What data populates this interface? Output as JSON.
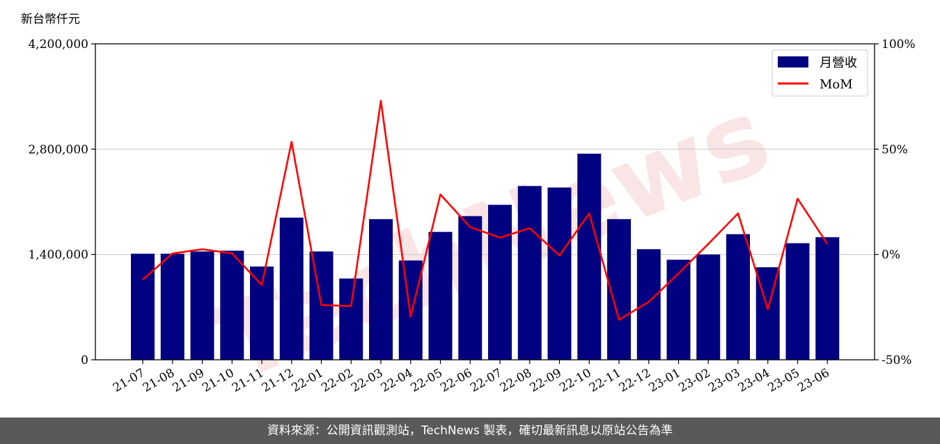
{
  "chart_data": {
    "type": "bar",
    "unit_label": "新台幣仟元",
    "categories": [
      "21-07",
      "21-08",
      "21-09",
      "21-10",
      "21-11",
      "21-12",
      "22-01",
      "22-02",
      "22-03",
      "22-04",
      "22-05",
      "22-06",
      "22-07",
      "22-08",
      "22-09",
      "22-10",
      "22-11",
      "22-12",
      "23-01",
      "23-02",
      "23-03",
      "23-04",
      "23-05",
      "23-06"
    ],
    "series": [
      {
        "name": "月營收",
        "type": "bar",
        "axis": "left",
        "color": "#000080",
        "values": [
          1410000,
          1410000,
          1440000,
          1450000,
          1240000,
          1890000,
          1440000,
          1080000,
          1870000,
          1320000,
          1700000,
          1910000,
          2060000,
          2310000,
          2290000,
          2740000,
          1870000,
          1470000,
          1330000,
          1400000,
          1670000,
          1230000,
          1550000,
          1630000
        ]
      },
      {
        "name": "MoM",
        "type": "line",
        "axis": "right",
        "color": "#ff0000",
        "values": [
          -12,
          0.5,
          2.5,
          0.5,
          -14.5,
          53.5,
          -24,
          -24.5,
          73,
          -29.5,
          28.5,
          13,
          8,
          12.5,
          -0.5,
          19.5,
          -31,
          -22.5,
          -9,
          5,
          19.5,
          -26,
          26.5,
          5
        ]
      }
    ],
    "left_axis": {
      "ylim": [
        0,
        4200000
      ],
      "ticks": [
        "0",
        "1,400,000",
        "2,800,000",
        "4,200,000"
      ],
      "tick_values": [
        0,
        1400000,
        2800000,
        4200000
      ]
    },
    "right_axis": {
      "ylim": [
        -50,
        100
      ],
      "ticks": [
        "-50%",
        "0%",
        "50%",
        "100%"
      ],
      "tick_values": [
        -50,
        0,
        50,
        100
      ]
    },
    "grid": "horizontal",
    "legend": "top-right",
    "watermark": "TechNews"
  },
  "footer": {
    "source": "資料來源：公開資訊觀測站，TechNews 製表，確切最新訊息以原站公告為準"
  }
}
